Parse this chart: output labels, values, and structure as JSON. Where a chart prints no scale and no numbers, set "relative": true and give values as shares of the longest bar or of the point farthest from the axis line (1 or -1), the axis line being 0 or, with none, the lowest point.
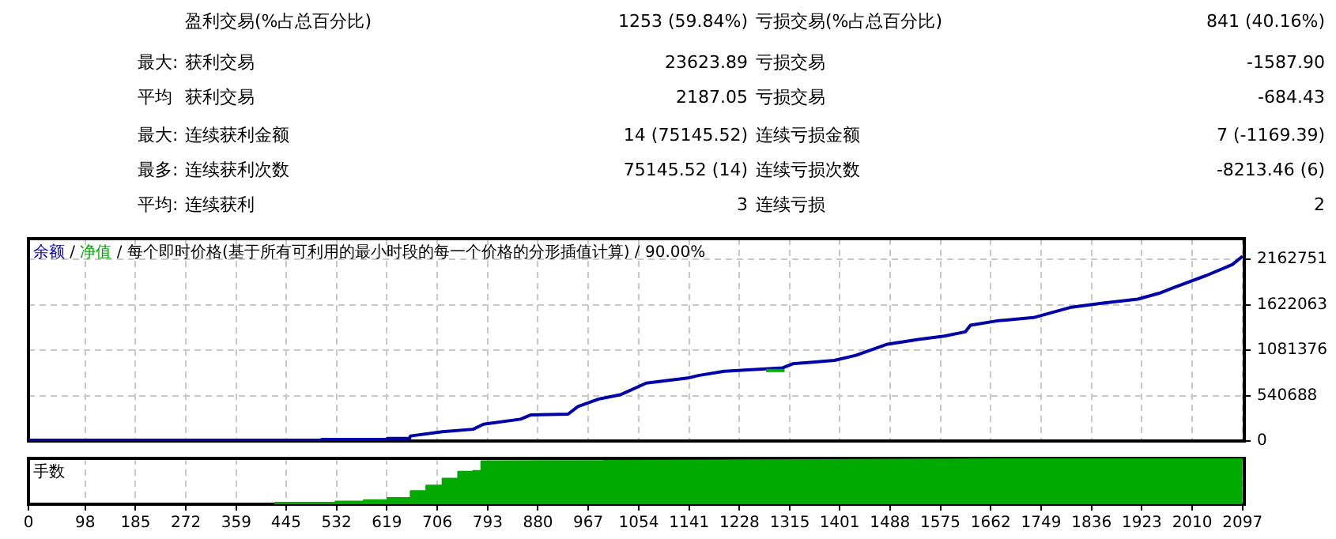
{
  "chart_data": [
    {
      "type": "other",
      "categories": [
        null,
        "最大",
        "平均",
        "最大",
        "最多",
        "平均"
      ],
      "annotations": [
        null,
        "盈利交易(%占总百分比)",
        "1253 (59.84%)",
        "亏损交易(%占总百分比)",
        "841 (40.16%)",
        ":",
        "获利交易",
        "23623.89",
        "亏损交易",
        "-1587.90",
        null,
        "获利交易",
        "2187.05",
        "亏损交易",
        "-684.43",
        ":",
        "连续获利金额",
        "14 (75145.52)",
        "连续亏损金额",
        "7 (-1169.39)",
        ":",
        "连续获利次数",
        "75145.52 (14)",
        "连续亏损次数",
        "-8213.46 (6)",
        ":",
        "连续获利",
        "3",
        "连续亏损",
        "2"
      ]
    },
    {
      "type": "line",
      "title": "每个即时价格(基于所有可利用的最小时段的每一个价格的分形插值计算) / 90.00%",
      "annotations": [
        "/"
      ],
      "legend": "top left",
      "grid": true,
      "line_style": "solid",
      "tick_labels": "y",
      "xlim": [
        0,
        2100
      ],
      "xticks": [
        0,
        98,
        185,
        272,
        359,
        445,
        532,
        619,
        706,
        793,
        880,
        967,
        1054,
        1141,
        1228,
        1315,
        1401,
        1488,
        1575,
        1662,
        1749,
        1836,
        1923,
        2010,
        2097
      ],
      "ylim": [
        0,
        2410000
      ],
      "yticks": [
        0,
        540688,
        1081376,
        1622063,
        2162751
      ],
      "series": [
        {
          "name": "余额",
          "color": "#0000aa",
          "x": [
            0,
            505,
            507,
            618,
            620,
            658,
            660,
            715,
            768,
            786,
            850,
            867,
            932,
            949,
            985,
            1022,
            1067,
            1139,
            1157,
            1202,
            1302,
            1320,
            1392,
            1429,
            1482,
            1537,
            1582,
            1618,
            1627,
            1672,
            1736,
            1799,
            1853,
            1916,
            1953,
            1979,
            2034,
            2079,
            2097
          ],
          "values": [
            10000,
            10000,
            20000,
            20000,
            30000,
            30000,
            60000,
            110000,
            140000,
            200000,
            260000,
            310000,
            320000,
            410000,
            500000,
            550000,
            690000,
            750000,
            780000,
            830000,
            870000,
            920000,
            960000,
            1020000,
            1150000,
            1210000,
            1250000,
            1300000,
            1380000,
            1430000,
            1470000,
            1590000,
            1640000,
            1690000,
            1760000,
            1830000,
            1970000,
            2100000,
            2200000
          ]
        },
        {
          "name": "净值",
          "color": "#00aa00",
          "x": [
            1274,
            1306
          ],
          "values": [
            840000,
            840000
          ]
        }
      ]
    },
    {
      "type": "area",
      "relative": true,
      "ylabel": "手数",
      "tick_labels": "x",
      "grid": "x",
      "xlim": [
        0,
        2100
      ],
      "xticks": [
        0,
        98,
        185,
        272,
        359,
        445,
        532,
        619,
        706,
        793,
        880,
        967,
        1054,
        1141,
        1228,
        1315,
        1401,
        1488,
        1575,
        1662,
        1749,
        1836,
        1923,
        2010,
        2097
      ],
      "series": [
        {
          "color": "#00aa00",
          "x": [
            426,
            426,
            530,
            530,
            579,
            579,
            620,
            620,
            660,
            660,
            687,
            687,
            715,
            715,
            742,
            742,
            768,
            768,
            782,
            782,
            796,
            2097
          ],
          "values": [
            0,
            0.035,
            0.035,
            0.06,
            0.06,
            0.09,
            0.09,
            0.14,
            0.14,
            0.29,
            0.29,
            0.41,
            0.41,
            0.56,
            0.56,
            0.71,
            0.71,
            0.73,
            0.73,
            0.94,
            0.94,
            1
          ]
        }
      ]
    }
  ]
}
